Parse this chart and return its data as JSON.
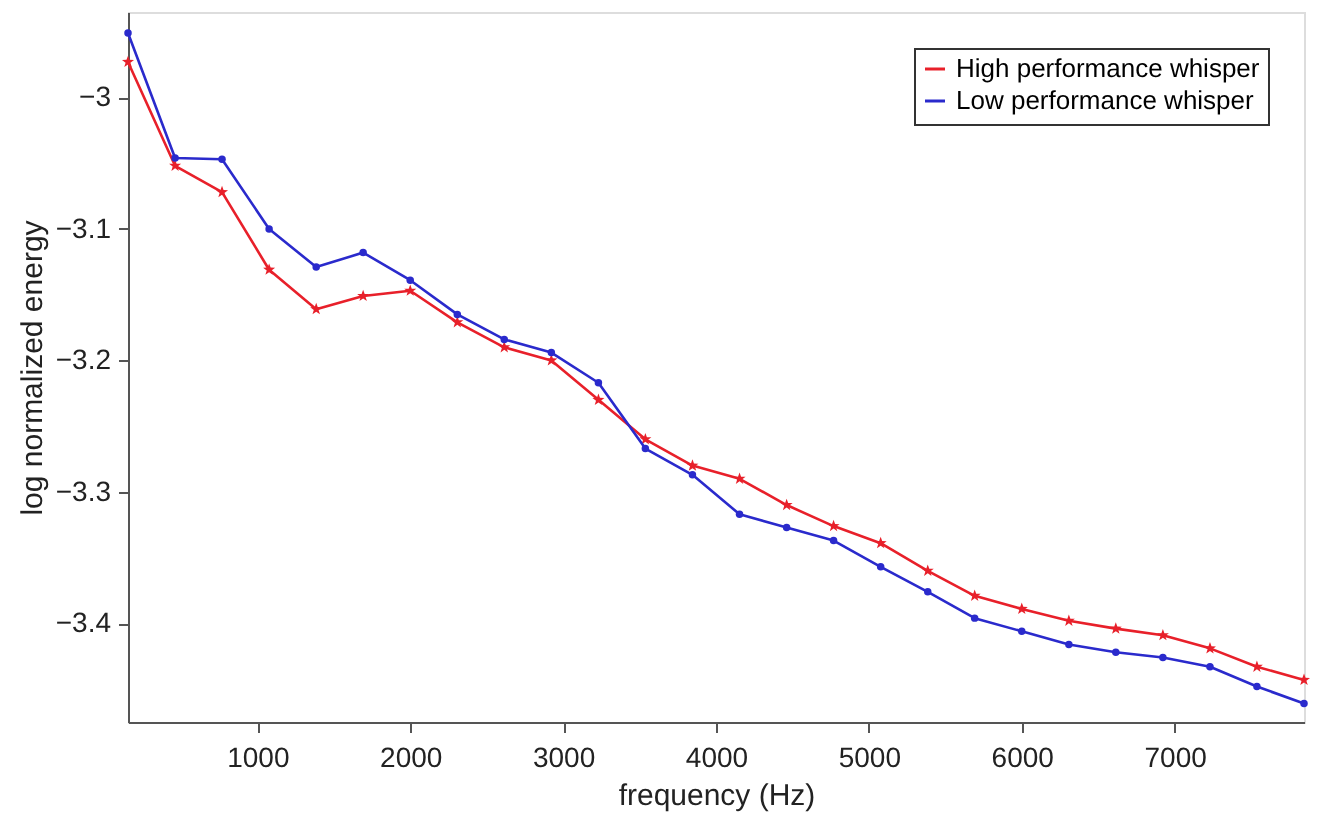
{
  "chart_data": {
    "type": "line",
    "xlabel": "frequency (Hz)",
    "ylabel": "log normalized energy",
    "x": [
      154,
      462,
      769,
      1077,
      1385,
      1692,
      2000,
      2308,
      2615,
      2923,
      3231,
      3538,
      3846,
      4154,
      4462,
      4769,
      5077,
      5385,
      5692,
      6000,
      6308,
      6615,
      6923,
      7231,
      7538,
      7846
    ],
    "series": [
      {
        "name": "High performance whisper",
        "color": "#e8202a",
        "marker": "star",
        "values": [
          -2.973,
          -3.052,
          -3.072,
          -3.131,
          -3.161,
          -3.151,
          -3.147,
          -3.171,
          -3.19,
          -3.2,
          -3.23,
          -3.26,
          -3.28,
          -3.29,
          -3.31,
          -3.326,
          -3.339,
          -3.36,
          -3.379,
          -3.389,
          -3.398,
          -3.404,
          -3.409,
          -3.419,
          -3.433,
          -3.443
        ]
      },
      {
        "name": "Low performance whisper",
        "color": "#2a2acc",
        "marker": "circle",
        "values": [
          -2.951,
          -3.046,
          -3.047,
          -3.1,
          -3.129,
          -3.118,
          -3.139,
          -3.165,
          -3.184,
          -3.194,
          -3.217,
          -3.267,
          -3.287,
          -3.317,
          -3.327,
          -3.337,
          -3.357,
          -3.376,
          -3.396,
          -3.406,
          -3.416,
          -3.422,
          -3.426,
          -3.433,
          -3.448,
          -3.461
        ]
      }
    ],
    "xlim": [
      154,
      7846
    ],
    "xticks": [
      1000,
      2000,
      3000,
      4000,
      5000,
      6000,
      7000
    ],
    "ylim": [
      -3.475,
      -2.935
    ],
    "yticks": [
      -3.4,
      -3.3,
      -3.2,
      -3.1,
      -3
    ],
    "grid": false,
    "legend": "top right",
    "line_style": "solid"
  }
}
